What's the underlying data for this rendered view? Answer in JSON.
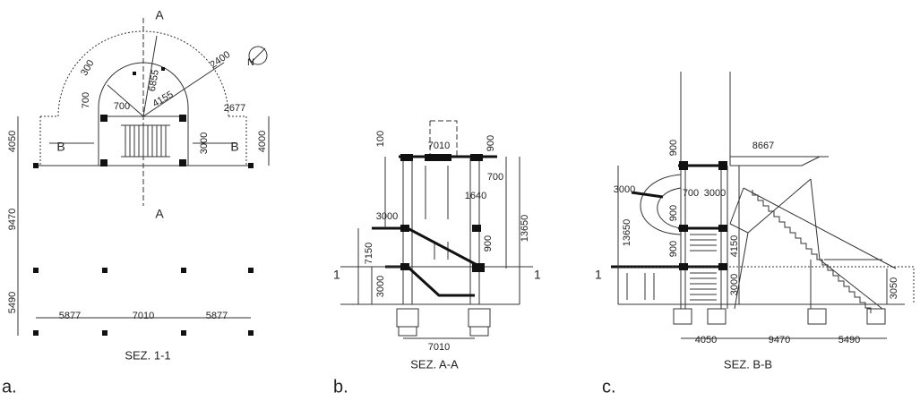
{
  "panels": [
    {
      "label": "a.",
      "caption": "SEZ. 1-1",
      "north": "N",
      "markers": [
        "A",
        "A",
        "B",
        "B"
      ],
      "dimensions": [
        "300",
        "6855",
        "2400",
        "700",
        "700",
        "4155",
        "2677",
        "4050",
        "3000",
        "4000",
        "9470",
        "5490",
        "5877",
        "7010",
        "5877"
      ]
    },
    {
      "label": "b.",
      "caption": "SEZ. A-A",
      "markers": [
        "1",
        "1"
      ],
      "dimensions": [
        "100",
        "7010",
        "900",
        "700",
        "1640",
        "3000",
        "13650",
        "900",
        "7150",
        "3000",
        "7010"
      ]
    },
    {
      "label": "c.",
      "caption": "SEZ. B-B",
      "markers": [
        "1"
      ],
      "dimensions": [
        "900",
        "8667",
        "3000",
        "700",
        "3000",
        "900",
        "13650",
        "900",
        "4150",
        "3000",
        "3050",
        "4050",
        "9470",
        "5490"
      ]
    }
  ]
}
